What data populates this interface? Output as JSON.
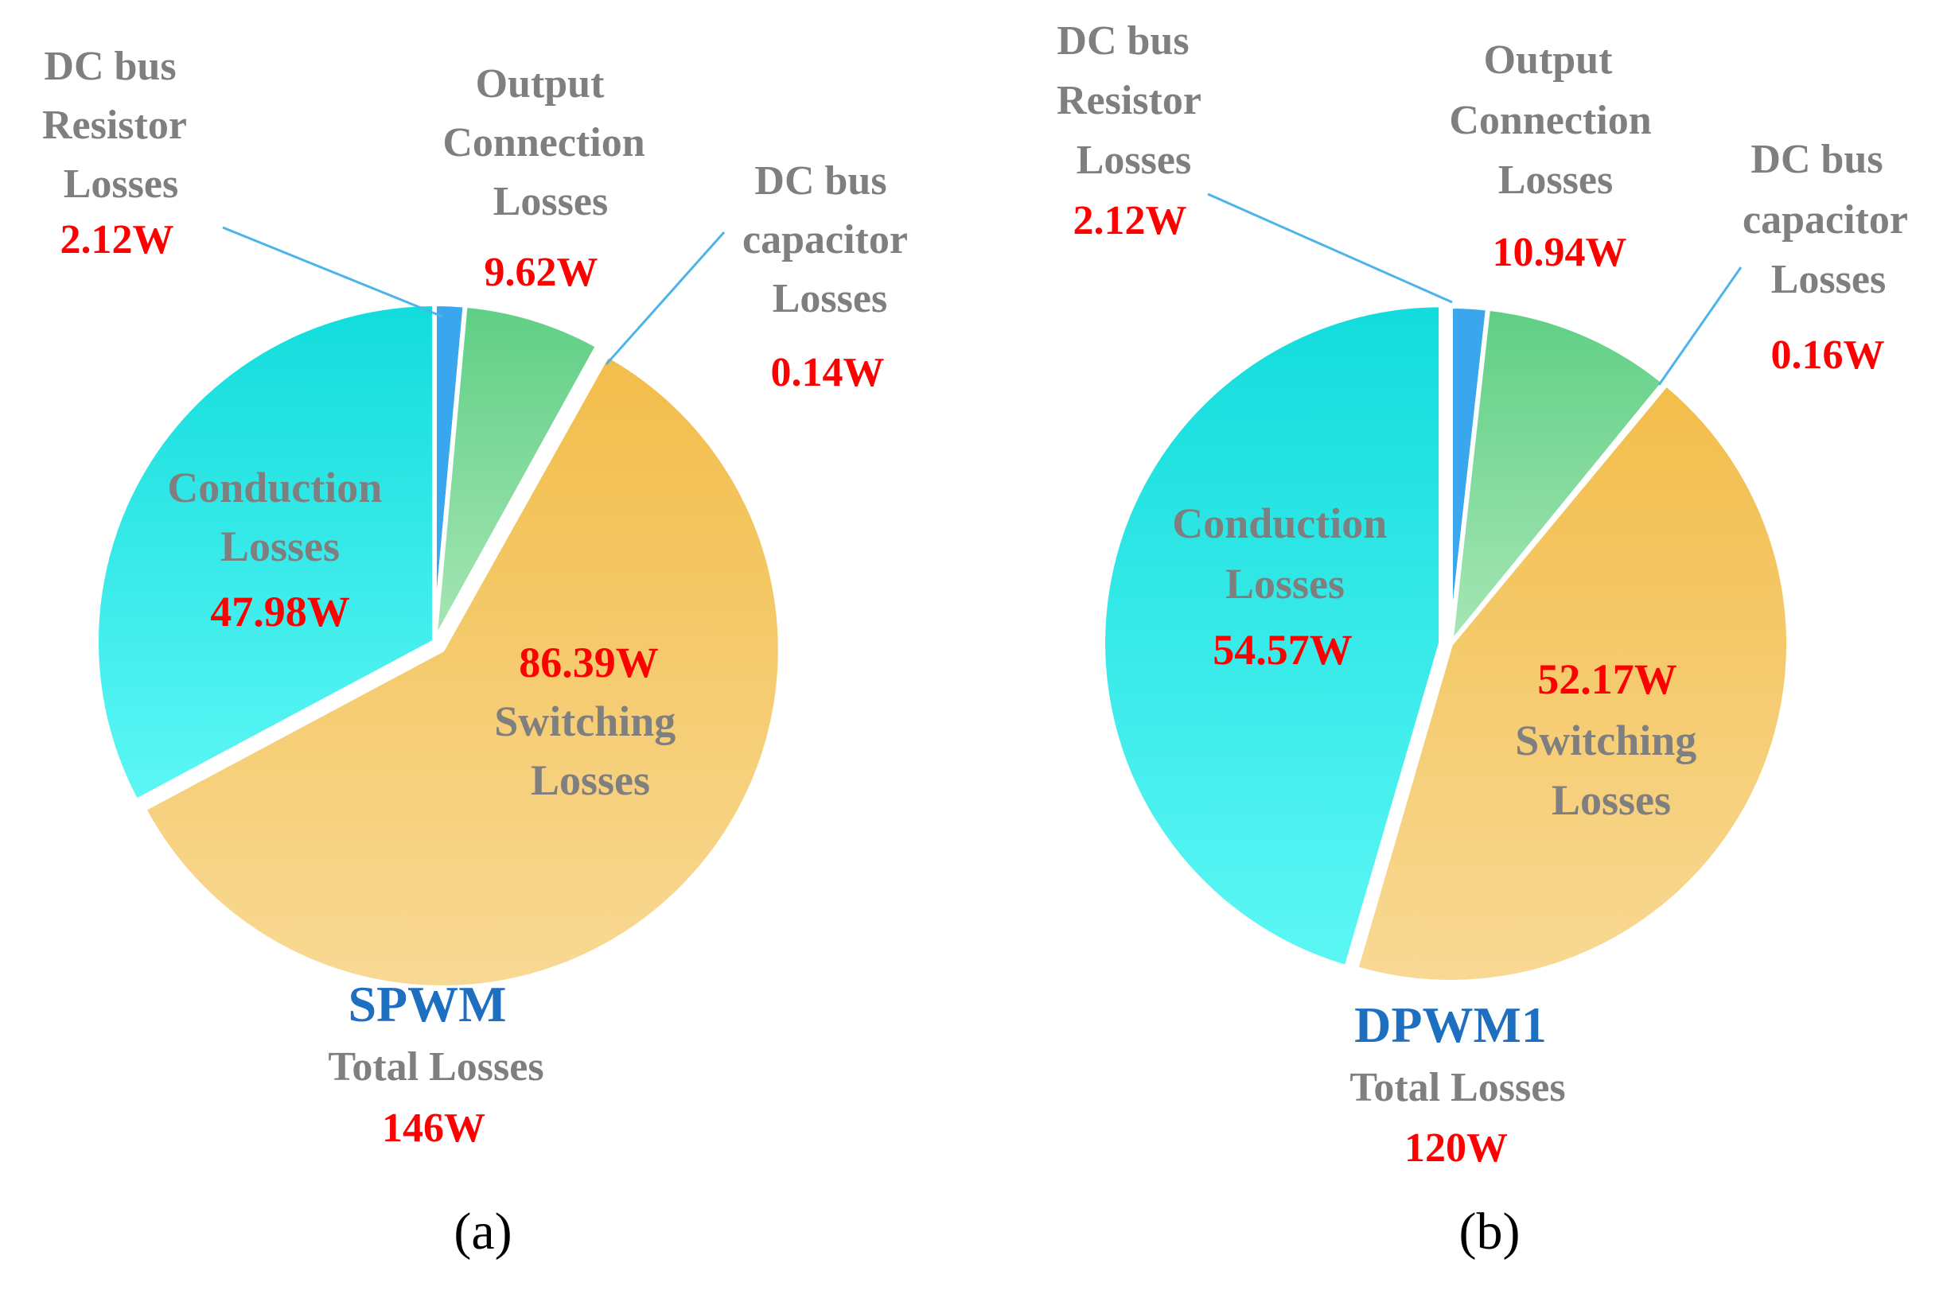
{
  "chart_data": [
    {
      "type": "pie",
      "panel_caption": "(a)",
      "scheme": "SPWM",
      "total_label": "Total Losses",
      "total_value": "146W",
      "unit": "W",
      "slices": [
        {
          "key": "resistor",
          "label_lines": [
            "DC bus",
            "Resistor",
            "Losses"
          ],
          "value": 2.12,
          "value_text": "2.12W",
          "color_top": "#3aa6ee",
          "color_bottom": "#3aa6ee"
        },
        {
          "key": "output",
          "label_lines": [
            "Output",
            "Connection",
            "Losses"
          ],
          "value": 9.62,
          "value_text": "9.62W",
          "color_top": "#5fcf85",
          "color_bottom": "#a7e6b5"
        },
        {
          "key": "capacitor",
          "label_lines": [
            "DC bus",
            "capacitor",
            "Losses"
          ],
          "value": 0.14,
          "value_text": "0.14W",
          "color_top": "#4db4ea",
          "color_bottom": "#4db4ea"
        },
        {
          "key": "switching",
          "label_lines": [
            "Switching",
            "Losses"
          ],
          "value": 86.39,
          "value_text": "86.39W",
          "color_top": "#f2bd4a",
          "color_bottom": "#f8d994"
        },
        {
          "key": "conduction",
          "label_lines": [
            "Conduction",
            "Losses"
          ],
          "value": 47.98,
          "value_text": "47.98W",
          "color_top": "#12dcdc",
          "color_bottom": "#5cf7f5"
        }
      ]
    },
    {
      "type": "pie",
      "panel_caption": "(b)",
      "scheme": "DPWM1",
      "total_label": "Total Losses",
      "total_value": "120W",
      "unit": "W",
      "slices": [
        {
          "key": "resistor",
          "label_lines": [
            "DC bus",
            "Resistor",
            "Losses"
          ],
          "value": 2.12,
          "value_text": "2.12W",
          "color_top": "#3aa6ee",
          "color_bottom": "#3aa6ee"
        },
        {
          "key": "output",
          "label_lines": [
            "Output",
            "Connection",
            "Losses"
          ],
          "value": 10.94,
          "value_text": "10.94W",
          "color_top": "#5fcf85",
          "color_bottom": "#a7e6b5"
        },
        {
          "key": "capacitor",
          "label_lines": [
            "DC bus",
            "capacitor",
            "Losses"
          ],
          "value": 0.16,
          "value_text": "0.16W",
          "color_top": "#4db4ea",
          "color_bottom": "#4db4ea"
        },
        {
          "key": "switching",
          "label_lines": [
            "Switching",
            "Losses"
          ],
          "value": 52.17,
          "value_text": "52.17W",
          "color_top": "#f2bd4a",
          "color_bottom": "#f8d994"
        },
        {
          "key": "conduction",
          "label_lines": [
            "Conduction",
            "Losses"
          ],
          "value": 54.57,
          "value_text": "54.57W",
          "color_top": "#12dcdc",
          "color_bottom": "#5cf7f5"
        }
      ]
    }
  ]
}
